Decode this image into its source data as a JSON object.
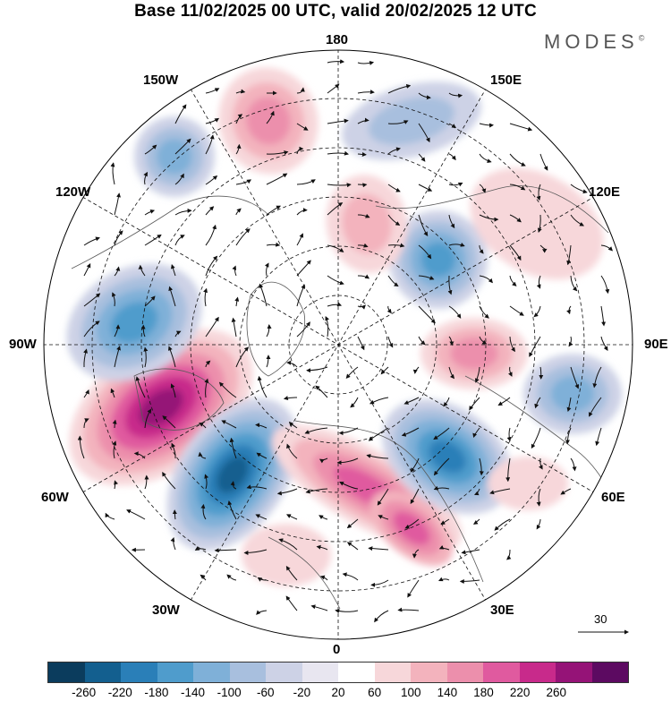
{
  "title": "Base 11/02/2025 00 UTC, valid 20/02/2025 12 UTC",
  "brand": "MODES",
  "brand_mark": "©",
  "longitude_labels": {
    "top": "180",
    "bottom": "0",
    "left": "90W",
    "right": "90E",
    "upper_left_1": "150W",
    "upper_left_2": "120W",
    "lower_left_1": "60W",
    "lower_left_2": "30W",
    "upper_right_1": "150E",
    "upper_right_2": "120E",
    "lower_right_1": "60E",
    "lower_right_2": "30E"
  },
  "vector_scale_label": "30",
  "colorbar": {
    "colors": [
      "#0b3c5d",
      "#135f8f",
      "#2a7fb8",
      "#4f9ccc",
      "#7fb0d8",
      "#a8bfde",
      "#cdd2e6",
      "#e8e6f0",
      "#ffffff",
      "#f7d7da",
      "#f3b3bd",
      "#ec8fac",
      "#e05a9f",
      "#c82a8b",
      "#951377",
      "#5c0a61"
    ],
    "ticks": [
      "-260",
      "-220",
      "-180",
      "-140",
      "-100",
      "-60",
      "-20",
      "20",
      "60",
      "100",
      "140",
      "180",
      "220",
      "260"
    ]
  },
  "anomaly_features": [
    {
      "sign": "positive",
      "intensity": "strong",
      "region": "Labrador / Baffin"
    },
    {
      "sign": "negative",
      "intensity": "strong",
      "region": "North Atlantic"
    },
    {
      "sign": "positive",
      "intensity": "moderate",
      "region": "Scandinavia to Black Sea"
    },
    {
      "sign": "negative",
      "intensity": "moderate",
      "region": "Western Russia"
    },
    {
      "sign": "positive",
      "intensity": "moderate",
      "region": "Central Siberia"
    },
    {
      "sign": "negative",
      "intensity": "weak",
      "region": "North America"
    },
    {
      "sign": "positive",
      "intensity": "moderate",
      "region": "Gulf of Alaska"
    }
  ],
  "colors": {
    "map_border": "#000000",
    "grid": "#000000",
    "coast": "#555555"
  }
}
